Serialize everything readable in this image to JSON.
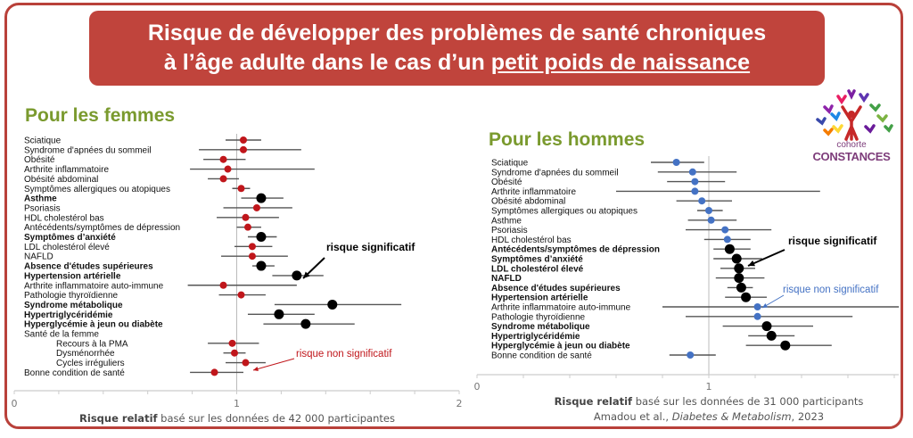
{
  "title": {
    "line1": "Risque de développer des problèmes de santé chroniques",
    "line2_prefix": "à l’âge adulte dans le cas d’un ",
    "line2_underlined": "petit poids de naissance"
  },
  "logo": {
    "line1": "cohorte",
    "line2": "CONSTANCES"
  },
  "colors": {
    "frame": "#b9413a",
    "title_bg": "#c0443c",
    "heading": "#7a9a2e",
    "women_ns": "#c0161b",
    "men_ns": "#4472c4",
    "significant": "#000000",
    "ci": "#555555"
  },
  "chart_data": [
    {
      "type": "forest",
      "title": "Pour les femmes",
      "xlabel_bold": "Risque relatif",
      "xlabel_rest": " basé sur les données de 42 000 participantes",
      "xlim": [
        0,
        2
      ],
      "xticks": [
        0,
        1,
        2
      ],
      "reference_line": 1,
      "rows": [
        {
          "label": "Sciatique",
          "rr": 1.03,
          "lo": 0.95,
          "hi": 1.11,
          "significant": false
        },
        {
          "label": "Syndrome d'apnées du sommeil",
          "rr": 1.03,
          "lo": 0.83,
          "hi": 1.29,
          "significant": false
        },
        {
          "label": "Obésité",
          "rr": 0.94,
          "lo": 0.85,
          "hi": 1.04,
          "significant": false
        },
        {
          "label": "Arthrite inflammatoire",
          "rr": 0.96,
          "lo": 0.79,
          "hi": 1.35,
          "significant": false
        },
        {
          "label": "Obésité abdominal",
          "rr": 0.94,
          "lo": 0.87,
          "hi": 1.01,
          "significant": false
        },
        {
          "label": "Symptômes allergiques ou atopiques",
          "rr": 1.02,
          "lo": 0.98,
          "hi": 1.06,
          "significant": false
        },
        {
          "label": "Asthme",
          "rr": 1.11,
          "lo": 1.02,
          "hi": 1.21,
          "significant": true
        },
        {
          "label": "Psoriasis",
          "rr": 1.09,
          "lo": 0.94,
          "hi": 1.25,
          "significant": false
        },
        {
          "label": "HDL cholestérol bas",
          "rr": 1.04,
          "lo": 0.91,
          "hi": 1.19,
          "significant": false
        },
        {
          "label": "Antécédents/symptômes de dépression",
          "rr": 1.05,
          "lo": 1.0,
          "hi": 1.11,
          "significant": false
        },
        {
          "label": "Symptômes d’anxiété",
          "rr": 1.11,
          "lo": 1.05,
          "hi": 1.18,
          "significant": true
        },
        {
          "label": "LDL cholestérol élevé",
          "rr": 1.07,
          "lo": 0.99,
          "hi": 1.16,
          "significant": false
        },
        {
          "label": "NAFLD",
          "rr": 1.07,
          "lo": 0.93,
          "hi": 1.23,
          "significant": false
        },
        {
          "label": "Absence d'études supérieures",
          "rr": 1.11,
          "lo": 1.07,
          "hi": 1.17,
          "significant": true
        },
        {
          "label": "Hypertension artérielle",
          "rr": 1.27,
          "lo": 1.16,
          "hi": 1.39,
          "significant": true
        },
        {
          "label": "Arthrite inflammatoire auto-immune",
          "rr": 0.94,
          "lo": 0.78,
          "hi": 1.27,
          "significant": false
        },
        {
          "label": "Pathologie thyroïdienne",
          "rr": 1.02,
          "lo": 0.92,
          "hi": 1.13,
          "significant": false
        },
        {
          "label": "Syndrome métabolique",
          "rr": 1.43,
          "lo": 1.17,
          "hi": 1.74,
          "significant": true
        },
        {
          "label": "Hypertriglycéridémie",
          "rr": 1.19,
          "lo": 1.05,
          "hi": 1.35,
          "significant": true
        },
        {
          "label": "Hyperglycémie à jeun ou diabète",
          "rr": 1.31,
          "lo": 1.12,
          "hi": 1.53,
          "significant": true
        },
        {
          "label": "Santé de la femme",
          "header": true
        },
        {
          "label": "Recours à la PMA",
          "rr": 0.98,
          "lo": 0.87,
          "hi": 1.1,
          "significant": false,
          "indent": true
        },
        {
          "label": "Dysménorrhée",
          "rr": 0.99,
          "lo": 0.94,
          "hi": 1.04,
          "significant": false,
          "indent": true
        },
        {
          "label": "Cycles irréguliers",
          "rr": 1.04,
          "lo": 0.95,
          "hi": 1.13,
          "significant": false,
          "indent": true
        },
        {
          "label": "Bonne condition de santé",
          "rr": 0.9,
          "lo": 0.79,
          "hi": 1.03,
          "significant": false
        }
      ],
      "annotations": [
        {
          "text": "risque significatif",
          "style": "significant"
        },
        {
          "text": "risque non significatif",
          "style": "non-significant"
        }
      ]
    },
    {
      "type": "forest",
      "title": "Pour les hommes",
      "xlabel_bold": "Risque relatif",
      "xlabel_rest": " basé sur les données de 31 000 participants",
      "citation_prefix": "Amadou et al., ",
      "citation_journal": "Diabetes & Metabolism",
      "citation_suffix": ", 2023",
      "xlim": [
        0,
        1.8
      ],
      "xticks": [
        0,
        1
      ],
      "reference_line": 1,
      "rows": [
        {
          "label": "Sciatique",
          "rr": 0.86,
          "lo": 0.75,
          "hi": 0.98,
          "significant": false
        },
        {
          "label": "Syndrome d'apnées du sommeil",
          "rr": 0.93,
          "lo": 0.78,
          "hi": 1.12,
          "significant": false
        },
        {
          "label": "Obésité",
          "rr": 0.94,
          "lo": 0.82,
          "hi": 1.07,
          "significant": false
        },
        {
          "label": "Arthrite inflammatoire",
          "rr": 0.94,
          "lo": 0.6,
          "hi": 1.48,
          "significant": false
        },
        {
          "label": "Obésité abdominal",
          "rr": 0.97,
          "lo": 0.86,
          "hi": 1.1,
          "significant": false
        },
        {
          "label": "Symptômes allergiques ou atopiques",
          "rr": 1.0,
          "lo": 0.95,
          "hi": 1.06,
          "significant": false
        },
        {
          "label": "Asthme",
          "rr": 1.01,
          "lo": 0.91,
          "hi": 1.12,
          "significant": false
        },
        {
          "label": "Psoriasis",
          "rr": 1.07,
          "lo": 0.9,
          "hi": 1.27,
          "significant": false
        },
        {
          "label": "HDL cholestérol bas",
          "rr": 1.08,
          "lo": 0.98,
          "hi": 1.18,
          "significant": false
        },
        {
          "label": "Antécédents/symptômes de dépression",
          "rr": 1.09,
          "lo": 1.02,
          "hi": 1.18,
          "significant": true
        },
        {
          "label": "Symptômes d’anxiété",
          "rr": 1.12,
          "lo": 1.02,
          "hi": 1.23,
          "significant": true
        },
        {
          "label": "LDL cholestérol élevé",
          "rr": 1.13,
          "lo": 1.05,
          "hi": 1.2,
          "significant": true
        },
        {
          "label": "NAFLD",
          "rr": 1.13,
          "lo": 1.03,
          "hi": 1.24,
          "significant": true
        },
        {
          "label": "Absence d'études supérieures",
          "rr": 1.14,
          "lo": 1.08,
          "hi": 1.19,
          "significant": true
        },
        {
          "label": "Hypertension artérielle",
          "rr": 1.16,
          "lo": 1.07,
          "hi": 1.25,
          "significant": true
        },
        {
          "label": "Arthrite inflammatoire auto-immune",
          "rr": 1.21,
          "lo": 0.8,
          "hi": 1.82,
          "significant": false
        },
        {
          "label": "Pathologie thyroïdienne",
          "rr": 1.21,
          "lo": 0.9,
          "hi": 1.62,
          "significant": false
        },
        {
          "label": "Syndrome métabolique",
          "rr": 1.25,
          "lo": 1.06,
          "hi": 1.45,
          "significant": true
        },
        {
          "label": "Hypertriglycéridémie",
          "rr": 1.27,
          "lo": 1.17,
          "hi": 1.37,
          "significant": true
        },
        {
          "label": "Hyperglycémie à jeun ou diabète",
          "rr": 1.33,
          "lo": 1.16,
          "hi": 1.53,
          "significant": true
        },
        {
          "label": "Bonne condition de santé",
          "rr": 0.92,
          "lo": 0.83,
          "hi": 1.03,
          "significant": false
        }
      ],
      "annotations": [
        {
          "text": "risque significatif",
          "style": "significant"
        },
        {
          "text": "risque non significatif",
          "style": "non-significant"
        }
      ]
    }
  ]
}
